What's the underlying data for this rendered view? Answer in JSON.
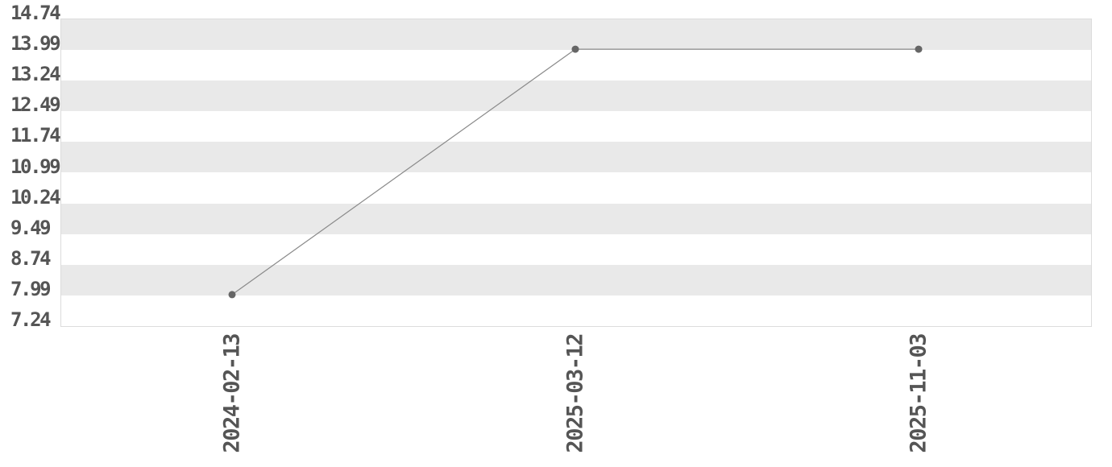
{
  "chart_data": {
    "type": "line",
    "title": "",
    "xlabel": "",
    "ylabel": "",
    "legend": "none",
    "grid": "horizontal-striped-bands",
    "x": [
      "2024-02-13",
      "2025-03-12",
      "2025-11-03"
    ],
    "values": [
      7.99,
      13.99,
      13.99
    ],
    "y_tick_labels": [
      "14.74",
      "13.99",
      "13.24",
      "12.49",
      "11.74",
      "10.99",
      "10.24",
      "9.49",
      "8.74",
      "7.99",
      "7.24"
    ],
    "ylim": [
      7.24,
      14.74
    ],
    "y_tick_step": 0.75,
    "colors": {
      "band": "#e9e9e9",
      "band_alt": "#ffffff",
      "line": "#8a8a8a",
      "marker": "#666666",
      "tick_text": "#555555",
      "plot_border": "#dcdcdc",
      "background": "#ffffff"
    }
  }
}
